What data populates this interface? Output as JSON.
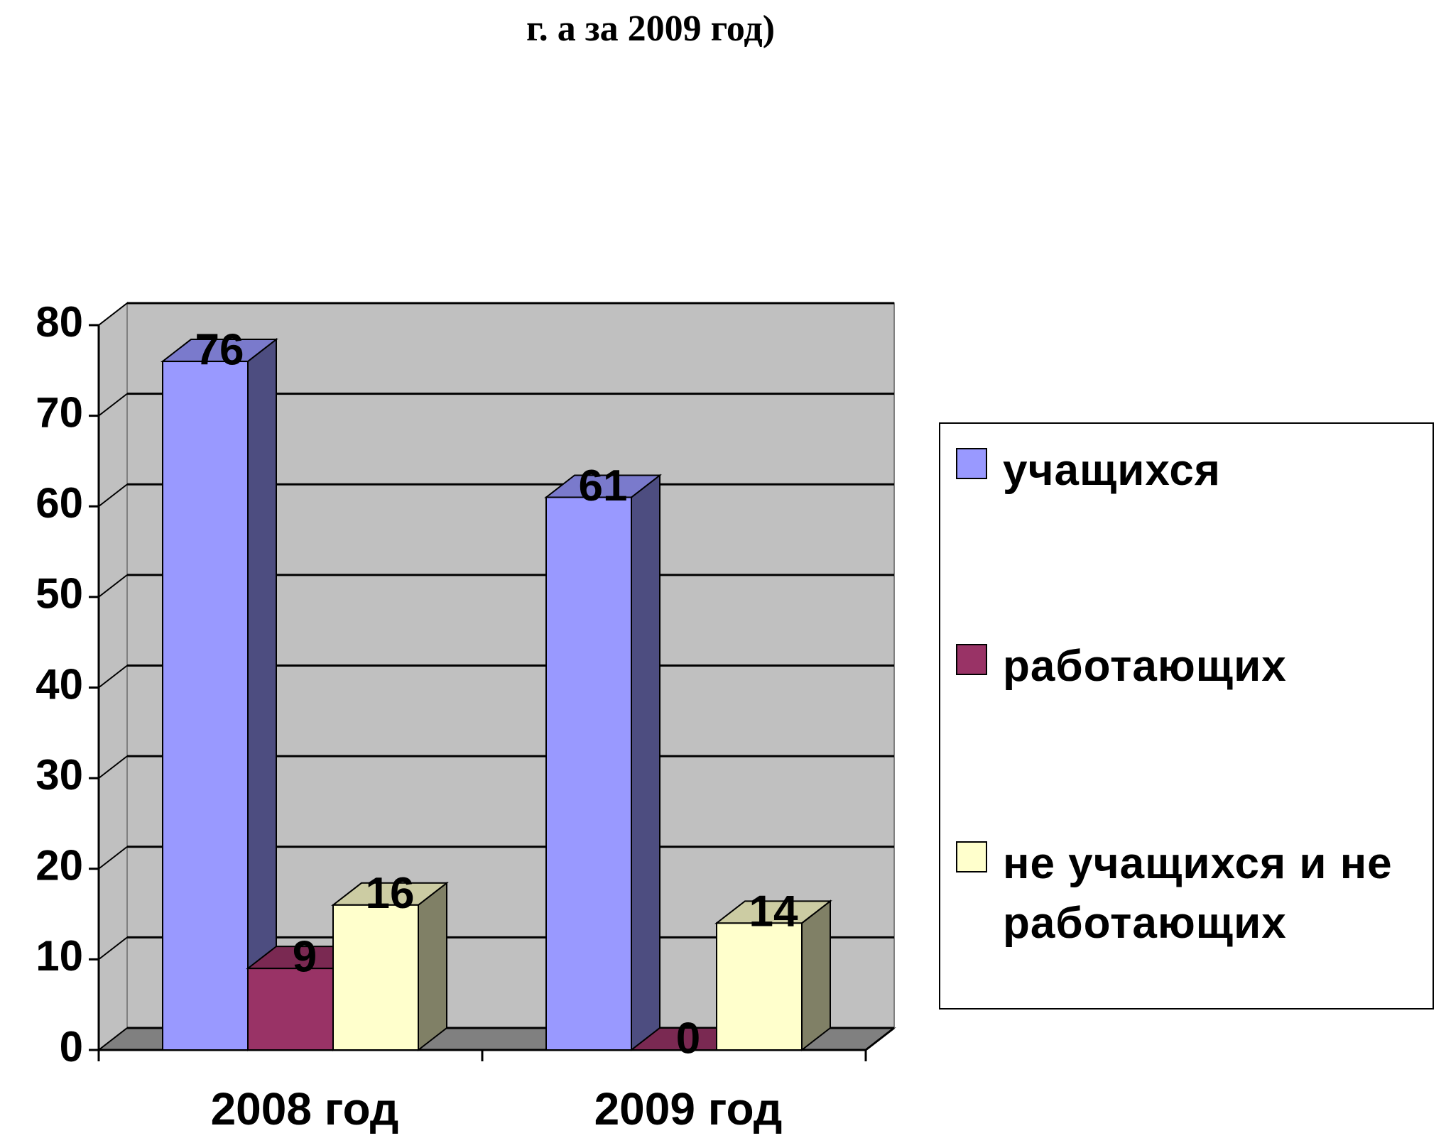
{
  "chart_data": {
    "type": "bar3d",
    "title": "г. а за 2009 год)",
    "categories": [
      "2008 год",
      "2009 год"
    ],
    "series": [
      {
        "name": "учащихся",
        "color": "#9999ff",
        "values": [
          76,
          61
        ]
      },
      {
        "name": "работающих",
        "color": "#993366",
        "values": [
          9,
          0
        ]
      },
      {
        "name": "не учащихся и не работающих",
        "color": "#ffffcc",
        "values": [
          16,
          14
        ]
      }
    ],
    "ylim": [
      0,
      80
    ],
    "yticks": [
      0,
      10,
      20,
      30,
      40,
      50,
      60,
      70,
      80
    ],
    "grid": true,
    "legend": "right"
  }
}
